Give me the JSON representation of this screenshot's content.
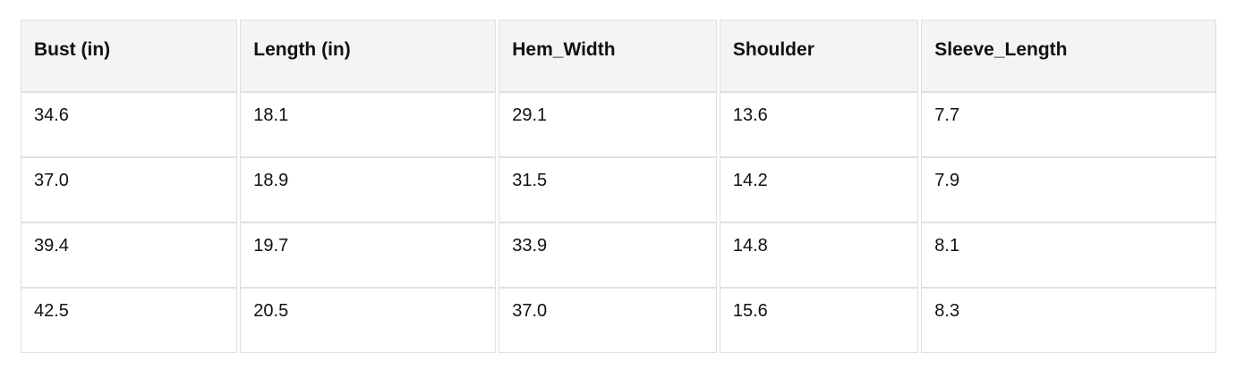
{
  "table": {
    "columns": [
      "Bust (in)",
      "Length (in)",
      "Hem_Width",
      "Shoulder",
      "Sleeve_Length"
    ],
    "rows": [
      [
        "34.6",
        "18.1",
        "29.1",
        "13.6",
        "7.7"
      ],
      [
        "37.0",
        "18.9",
        "31.5",
        "14.2",
        "7.9"
      ],
      [
        "39.4",
        "19.7",
        "33.9",
        "14.8",
        "8.1"
      ],
      [
        "42.5",
        "20.5",
        "37.0",
        "15.6",
        "8.3"
      ]
    ],
    "colors": {
      "header_bg": "#f4f4f4",
      "border": "#e0e0e0",
      "text": "#111111"
    }
  }
}
